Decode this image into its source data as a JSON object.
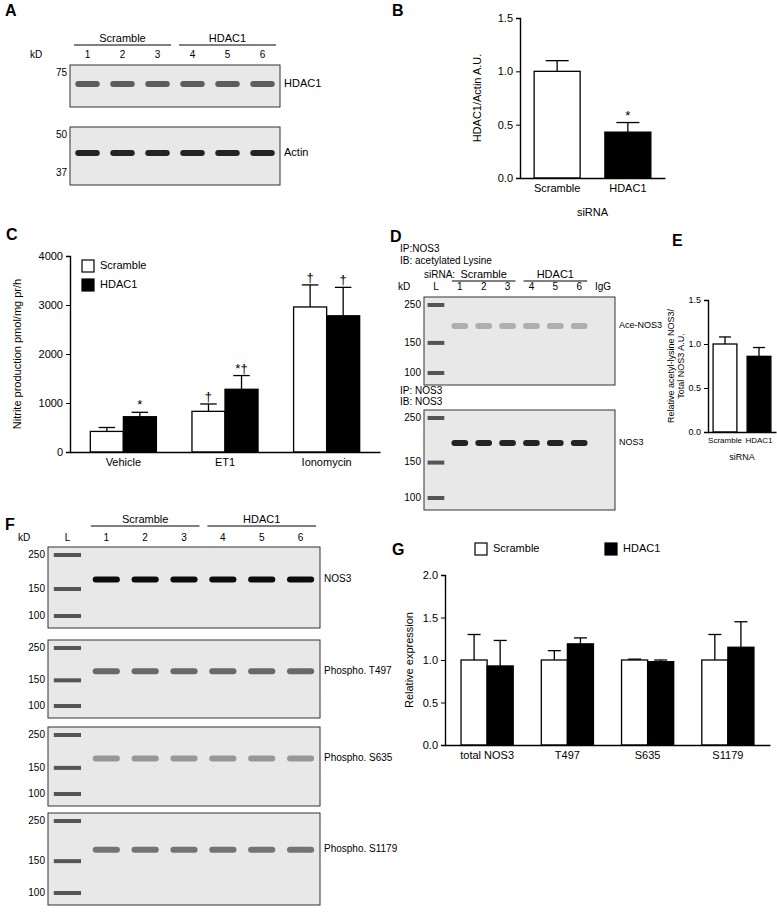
{
  "blots": [
    {
      "panel": "A",
      "kd_label": "kD",
      "lanes": [
        {
          "group": "Scramble",
          "labels": [
            "1",
            "2",
            "3"
          ]
        },
        {
          "group": "HDAC1",
          "labels": [
            "4",
            "5",
            "6"
          ]
        }
      ],
      "strips": [
        {
          "label": "HDAC1",
          "markers": [
            75
          ]
        },
        {
          "label": "Actin",
          "markers": [
            50,
            37
          ]
        }
      ]
    },
    {
      "panel": "D",
      "kd_label": "kD",
      "group_title": "siRNA:",
      "lanes": [
        {
          "group": null,
          "labels": [
            "L"
          ],
          "ladder": true
        },
        {
          "group": "Scramble",
          "labels": [
            "1",
            "2",
            "3"
          ]
        },
        {
          "group": "HDAC1",
          "labels": [
            "4",
            "5",
            "6"
          ]
        },
        {
          "group": null,
          "labels": [
            "IgG"
          ]
        }
      ],
      "strips": [
        {
          "headings": [
            "IP:NOS3",
            "IB: acetylated Lysine"
          ],
          "label": "Ace-NOS3",
          "markers": [
            250,
            150,
            100
          ]
        },
        {
          "headings": [
            "IP: NOS3",
            "IB: NOS3"
          ],
          "label": "NOS3",
          "markers": [
            250,
            150,
            100
          ]
        }
      ]
    },
    {
      "panel": "F",
      "kd_label": "kD",
      "lanes": [
        {
          "group": null,
          "labels": [
            "L"
          ],
          "ladder": true
        },
        {
          "group": "Scramble",
          "labels": [
            "1",
            "2",
            "3"
          ]
        },
        {
          "group": "HDAC1",
          "labels": [
            "4",
            "5",
            "6"
          ]
        }
      ],
      "strips": [
        {
          "label": "NOS3",
          "markers": [
            250,
            150,
            100
          ]
        },
        {
          "label": "Phospho. T497",
          "markers": [
            250,
            150,
            100
          ]
        },
        {
          "label": "Phospho. S635",
          "markers": [
            250,
            150,
            100
          ]
        },
        {
          "label": "Phospho. S1179",
          "markers": [
            250,
            150,
            100
          ]
        }
      ]
    }
  ],
  "chart_data": [
    {
      "panel": "B",
      "type": "bar",
      "categories": [
        "Scramble",
        "HDAC1"
      ],
      "values": [
        1.0,
        0.43
      ],
      "errors": [
        0.1,
        0.09
      ],
      "annotations": [
        null,
        "*"
      ],
      "colors": [
        "#ffffff",
        "#000000"
      ],
      "ylim": [
        0,
        1.5
      ],
      "yticks": [
        {
          "value": 0,
          "label": "0.0"
        },
        0.5,
        {
          "value": 1,
          "label": "1.0"
        },
        1.5
      ],
      "ylabel": "HDAC1/Actin A.U.",
      "xlabel": "siRNA"
    },
    {
      "panel": "C",
      "type": "bar",
      "categories": [
        "Vehicle",
        "ET1",
        "Ionomycin"
      ],
      "series": [
        {
          "name": "Scramble",
          "color": "#ffffff",
          "values": [
            420,
            830,
            2960
          ],
          "errors": [
            80,
            150,
            450
          ],
          "annotations": [
            null,
            "†",
            "†"
          ]
        },
        {
          "name": "HDAC1",
          "color": "#000000",
          "values": [
            720,
            1280,
            2780
          ],
          "errors": [
            90,
            280,
            580
          ],
          "annotations": [
            "*",
            "*†",
            "†"
          ]
        }
      ],
      "ylim": [
        0,
        4000
      ],
      "yticks": [
        0,
        1000,
        2000,
        3000,
        4000
      ],
      "ylabel": "Nitrite production pmol/mg pr/h",
      "legend": "top-left"
    },
    {
      "panel": "E",
      "type": "bar",
      "categories": [
        "Scramble",
        "HDAC1"
      ],
      "values": [
        1.0,
        0.86
      ],
      "errors": [
        0.08,
        0.1
      ],
      "colors": [
        "#ffffff",
        "#000000"
      ],
      "ylim": [
        0,
        1.5
      ],
      "yticks": [
        {
          "value": 0,
          "label": "0.0"
        },
        0.5,
        {
          "value": 1,
          "label": "1.0"
        },
        1.5
      ],
      "ylabel": [
        "Relative acetyl-lysine NOS3/",
        "Total NOS3 A.U."
      ],
      "xlabel": "siRNA"
    },
    {
      "panel": "G",
      "type": "bar",
      "categories": [
        "total NOS3",
        "T497",
        "S635",
        "S1179"
      ],
      "series": [
        {
          "name": "Scramble",
          "color": "#ffffff",
          "values": [
            1.0,
            1.0,
            1.0,
            1.0
          ],
          "errors": [
            0.3,
            0.11,
            0.01,
            0.3
          ]
        },
        {
          "name": "HDAC1",
          "color": "#000000",
          "values": [
            0.93,
            1.19,
            0.98,
            1.15
          ],
          "errors": [
            0.3,
            0.07,
            0.02,
            0.3
          ]
        }
      ],
      "ylim": [
        0,
        2
      ],
      "yticks": [
        {
          "value": 0,
          "label": "0.0"
        },
        0.5,
        {
          "value": 1,
          "label": "1.0"
        },
        1.5,
        {
          "value": 2,
          "label": "2.0"
        }
      ],
      "ylabel": "Relative expression",
      "legend": "top"
    }
  ]
}
